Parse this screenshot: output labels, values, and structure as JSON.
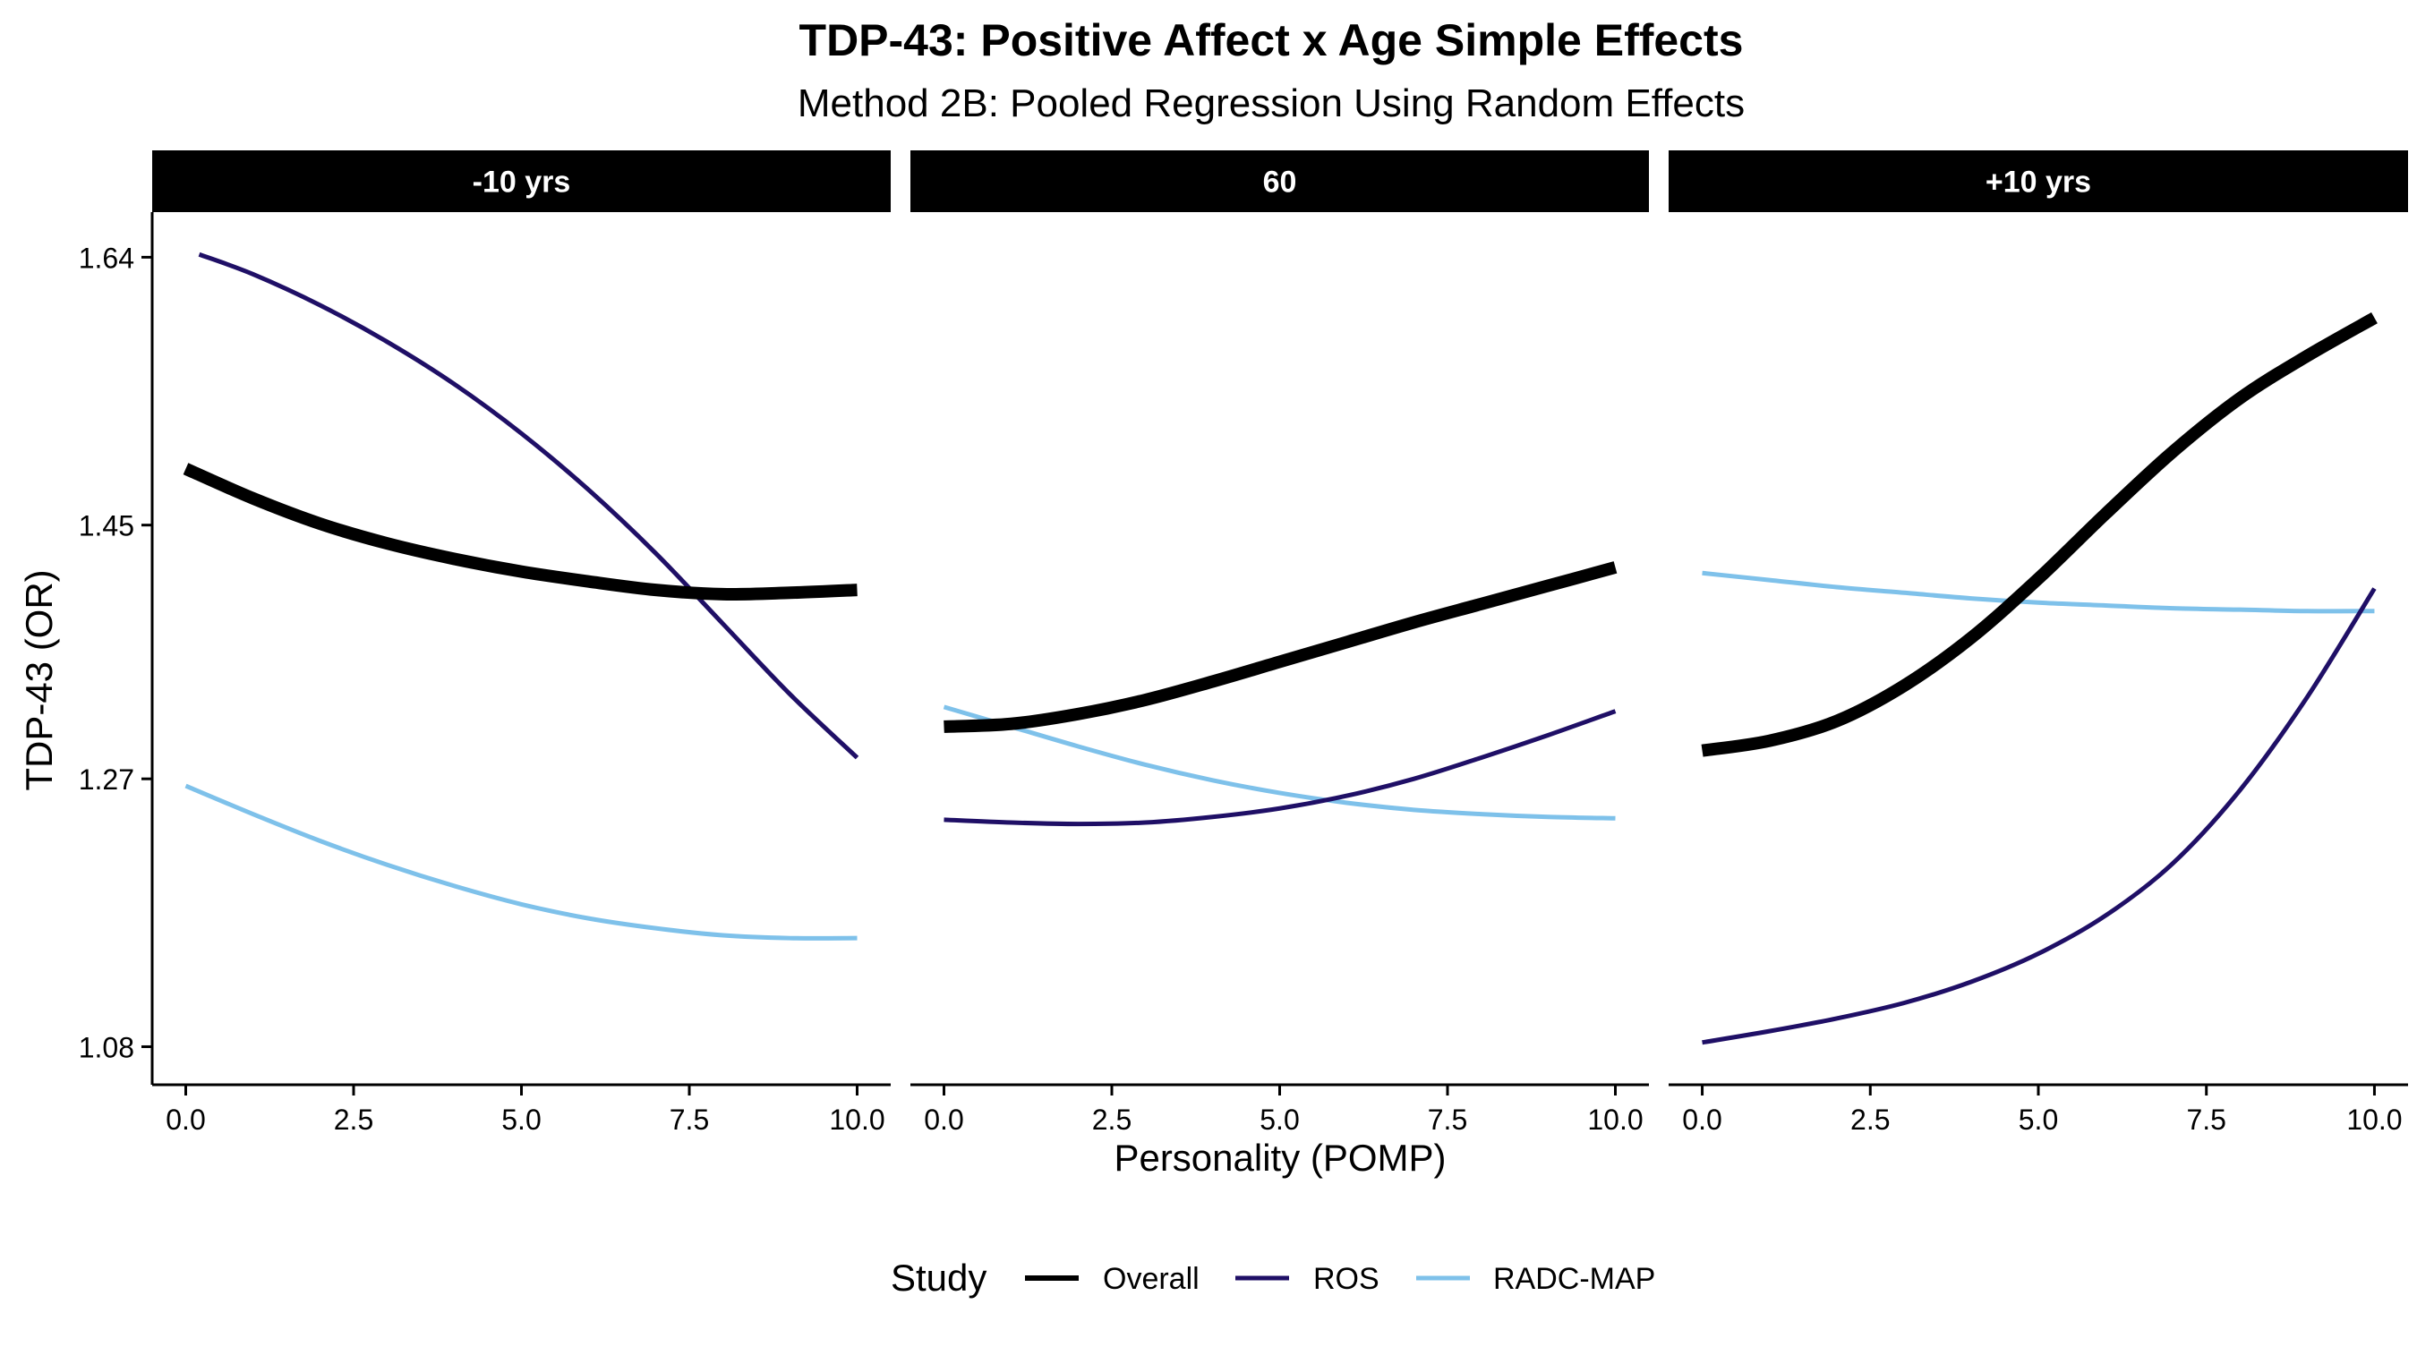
{
  "chart_data": {
    "type": "line",
    "title": "TDP-43: Positive Affect x Age Simple Effects",
    "subtitle": "Method 2B: Pooled Regression Using Random Effects",
    "xlabel": "Personality (POMP)",
    "ylabel": "TDP-43 (OR)",
    "xlim": [
      -0.5,
      10.5
    ],
    "ylim": [
      1.053,
      1.672
    ],
    "x_ticks": [
      0.0,
      2.5,
      5.0,
      7.5,
      10.0
    ],
    "x_tick_labels": [
      "0.0",
      "2.5",
      "5.0",
      "7.5",
      "10.0"
    ],
    "y_ticks": [
      1.08,
      1.27,
      1.45,
      1.64
    ],
    "y_tick_labels": [
      "1.08",
      "1.27",
      "1.45",
      "1.64"
    ],
    "grid": false,
    "legend": {
      "title": "Study",
      "position": "bottom",
      "entries": [
        "Overall",
        "ROS",
        "RADC-MAP"
      ]
    },
    "series_styles": {
      "Overall": {
        "color": "#000000",
        "width": 14
      },
      "ROS": {
        "color": "#1f0f66",
        "width": 5
      },
      "RADC-MAP": {
        "color": "#7ec1ea",
        "width": 5
      }
    },
    "facets": [
      {
        "label": "-10 yrs",
        "series": [
          {
            "name": "Overall",
            "x": [
              0,
              1,
              2,
              3,
              4,
              5,
              6,
              7,
              8,
              9,
              10
            ],
            "values": [
              1.49,
              1.469,
              1.451,
              1.437,
              1.426,
              1.417,
              1.41,
              1.404,
              1.401,
              1.402,
              1.404
            ]
          },
          {
            "name": "ROS",
            "x": [
              0.2,
              1,
              2,
              3,
              4,
              5,
              6,
              7,
              8,
              9,
              10
            ],
            "values": [
              1.642,
              1.628,
              1.606,
              1.58,
              1.55,
              1.515,
              1.475,
              1.43,
              1.38,
              1.33,
              1.285
            ]
          },
          {
            "name": "RADC-MAP",
            "x": [
              0,
              1,
              2,
              3,
              4,
              5,
              6,
              7,
              8,
              9,
              10
            ],
            "values": [
              1.265,
              1.245,
              1.226,
              1.209,
              1.194,
              1.181,
              1.171,
              1.164,
              1.159,
              1.157,
              1.157
            ]
          }
        ]
      },
      {
        "label": "60",
        "series": [
          {
            "name": "Overall",
            "x": [
              0,
              1,
              2,
              3,
              4,
              5,
              6,
              7,
              8,
              9,
              10
            ],
            "values": [
              1.307,
              1.309,
              1.316,
              1.326,
              1.339,
              1.353,
              1.367,
              1.381,
              1.394,
              1.407,
              1.42
            ]
          },
          {
            "name": "ROS",
            "x": [
              0,
              1,
              2,
              3,
              4,
              5,
              6,
              7,
              8,
              9,
              10
            ],
            "values": [
              1.241,
              1.239,
              1.238,
              1.239,
              1.243,
              1.249,
              1.258,
              1.27,
              1.285,
              1.301,
              1.318
            ]
          },
          {
            "name": "RADC-MAP",
            "x": [
              0,
              1,
              2,
              3,
              4,
              5,
              6,
              7,
              8,
              9,
              10
            ],
            "values": [
              1.321,
              1.307,
              1.293,
              1.28,
              1.269,
              1.26,
              1.253,
              1.248,
              1.245,
              1.243,
              1.242
            ]
          }
        ]
      },
      {
        "label": "+10 yrs",
        "series": [
          {
            "name": "Overall",
            "x": [
              0,
              1,
              2,
              3,
              4,
              5,
              6,
              7,
              8,
              9,
              10
            ],
            "values": [
              1.29,
              1.297,
              1.311,
              1.336,
              1.37,
              1.412,
              1.458,
              1.502,
              1.54,
              1.57,
              1.597
            ]
          },
          {
            "name": "ROS",
            "x": [
              0,
              1,
              2,
              3,
              4,
              5,
              6,
              7,
              8,
              9,
              10
            ],
            "values": [
              1.083,
              1.091,
              1.1,
              1.111,
              1.126,
              1.146,
              1.173,
              1.21,
              1.262,
              1.328,
              1.405
            ]
          },
          {
            "name": "RADC-MAP",
            "x": [
              0,
              1,
              2,
              3,
              4,
              5,
              6,
              7,
              8,
              9,
              10
            ],
            "values": [
              1.416,
              1.411,
              1.406,
              1.402,
              1.398,
              1.395,
              1.393,
              1.391,
              1.39,
              1.389,
              1.389
            ]
          }
        ]
      }
    ]
  }
}
